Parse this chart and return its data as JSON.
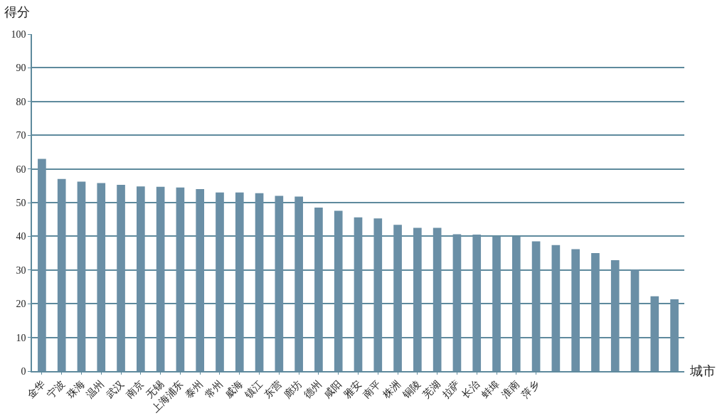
{
  "chart_data": {
    "type": "bar",
    "ylabel": "得分",
    "xlabel": "城市",
    "categories": [
      "金华",
      "宁波",
      "珠海",
      "温州",
      "武汉",
      "南京",
      "无锡",
      "上海浦东",
      "泰州",
      "常州",
      "威海",
      "镇江",
      "东营",
      "廊坊",
      "德州",
      "咸阳",
      "雅安",
      "南平",
      "株洲",
      "铜陵",
      "芜湖",
      "拉萨",
      "长治",
      "蚌埠",
      "淮南",
      "萍乡",
      null,
      null,
      null,
      null,
      null,
      null,
      null
    ],
    "values": [
      63,
      57,
      56.2,
      55.8,
      55.3,
      54.8,
      54.7,
      54.5,
      54,
      53,
      53,
      52.8,
      52,
      51.8,
      48.5,
      47.6,
      45.6,
      45.3,
      43.4,
      42.5,
      42.5,
      40.6,
      40.5,
      40,
      40,
      38.5,
      37.4,
      36.2,
      35,
      32.9,
      30.1,
      22.2,
      21.3
    ],
    "color": "#6a8fa6",
    "ylim": [
      0,
      100
    ],
    "yticks": [
      0,
      10,
      20,
      30,
      40,
      50,
      60,
      70,
      80,
      90,
      100
    ],
    "grid": "y"
  }
}
